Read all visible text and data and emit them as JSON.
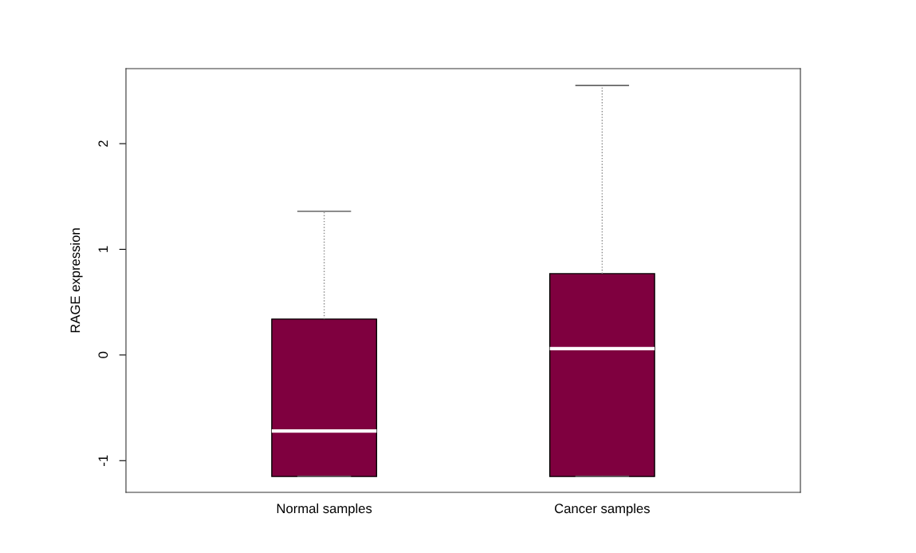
{
  "chart_data": {
    "type": "box",
    "ylabel": "RAGE expression",
    "categories": [
      "Normal samples",
      "Cancer samples"
    ],
    "boxes": [
      {
        "low": -1.15,
        "q1": -1.15,
        "median": -0.72,
        "q3": 0.34,
        "high": 1.36
      },
      {
        "low": -1.15,
        "q1": -1.15,
        "median": 0.06,
        "q3": 0.77,
        "high": 2.55
      }
    ],
    "color": "#7f003f",
    "ylim": [
      -1.3,
      2.71
    ],
    "yticks": [
      -1,
      0,
      1,
      2
    ],
    "grid": false
  }
}
